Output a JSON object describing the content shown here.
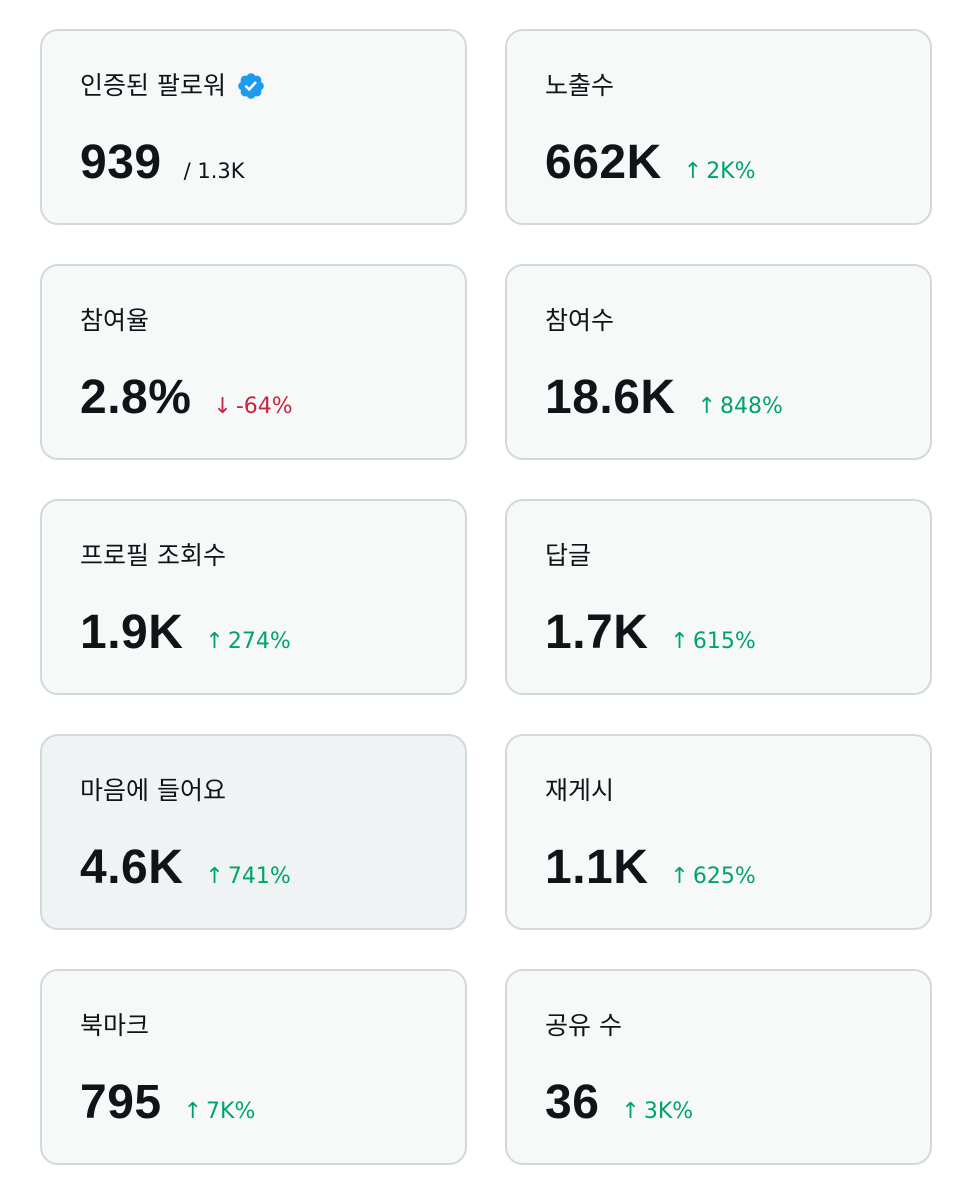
{
  "colors": {
    "card_bg": "#f7f9f9",
    "card_bg_hover": "#eff3f4",
    "card_border": "#cfd9de",
    "text": "#0f1419",
    "up": "#00a36c",
    "down": "#c9253c",
    "verified": "#1d9bf0"
  },
  "stats": {
    "verified_followers": {
      "label": "인증된 팔로워",
      "icon": "verified-badge-icon",
      "value": "939",
      "sub": "/ 1.3K"
    },
    "impressions": {
      "label": "노출수",
      "value": "662K",
      "arrow": "↑",
      "change": "2K%"
    },
    "engagement_rate": {
      "label": "참여율",
      "value": "2.8%",
      "arrow": "↓",
      "change": "-64%"
    },
    "engagements": {
      "label": "참여수",
      "value": "18.6K",
      "arrow": "↑",
      "change": "848%"
    },
    "profile_visits": {
      "label": "프로필 조회수",
      "value": "1.9K",
      "arrow": "↑",
      "change": "274%"
    },
    "replies": {
      "label": "답글",
      "value": "1.7K",
      "arrow": "↑",
      "change": "615%"
    },
    "likes": {
      "label": "마음에 들어요",
      "value": "4.6K",
      "arrow": "↑",
      "change": "741%"
    },
    "reposts": {
      "label": "재게시",
      "value": "1.1K",
      "arrow": "↑",
      "change": "625%"
    },
    "bookmarks": {
      "label": "북마크",
      "value": "795",
      "arrow": "↑",
      "change": "7K%"
    },
    "shares": {
      "label": "공유 수",
      "value": "36",
      "arrow": "↑",
      "change": "3K%"
    }
  }
}
